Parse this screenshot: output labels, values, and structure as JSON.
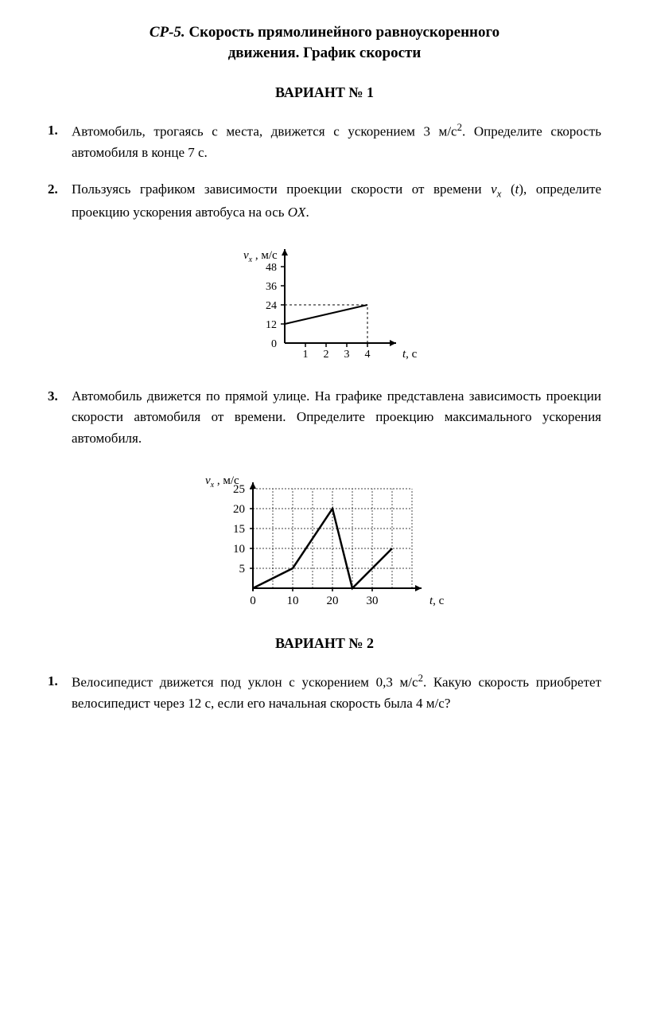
{
  "title_prefix": "СР-5.",
  "title_line1": " Скорость прямолинейного равноускоренного",
  "title_line2": "движения. График скорости",
  "variant1_header": "ВАРИАНТ № 1",
  "variant2_header": "ВАРИАНТ № 2",
  "v1_p1_num": "1.",
  "v1_p1_text_a": "Автомобиль, трогаясь с места, движется с ускорением 3 м/с",
  "v1_p1_text_b": ". Определите скорость автомобиля в конце 7 с.",
  "v1_p2_num": "2.",
  "v1_p2_text_a": "Пользуясь графиком зависимости проекции скорости от времени ",
  "v1_p2_text_b": " (",
  "v1_p2_text_c": "), определите проекцию ускорения автобуса на ось ",
  "v1_p2_text_d": ".",
  "v1_p3_num": "3.",
  "v1_p3_text": "Автомобиль движется по прямой улице. На графике представлена зависимость проекции скорости автомобиля от времени. Определите проекцию максимального ускорения автомобиля.",
  "v2_p1_num": "1.",
  "v2_p1_text_a": "Велосипедист движется под уклон с ускорением 0,3 м/с",
  "v2_p1_text_b": ". Какую скорость приобретет велосипедист через 12 с, если его начальная скорость была 4 м/с?",
  "var_vx": "v",
  "var_x": "x",
  "var_t": "t",
  "var_OX": "OX",
  "chart1": {
    "type": "line",
    "ylabel": "vₓ , м/с",
    "xlabel": "t, с",
    "y_ticks": [
      0,
      12,
      24,
      36,
      48
    ],
    "x_ticks": [
      1,
      2,
      3,
      4
    ],
    "line_points": [
      [
        0,
        12
      ],
      [
        4,
        24
      ]
    ],
    "dashed_vertical_x": 4,
    "dashed_horizontal_y": 24,
    "ylim": [
      0,
      55
    ],
    "xlim": [
      0,
      5
    ],
    "axis_color": "#000000",
    "line_color": "#000000",
    "line_width": 2,
    "background": "#ffffff"
  },
  "chart2": {
    "type": "line",
    "ylabel": "vₓ , м/с",
    "xlabel": "t, с",
    "y_ticks": [
      5,
      10,
      15,
      20,
      25
    ],
    "x_ticks": [
      0,
      10,
      20,
      30
    ],
    "line_points": [
      [
        0,
        0
      ],
      [
        10,
        5
      ],
      [
        20,
        20
      ],
      [
        25,
        0
      ],
      [
        35,
        10
      ]
    ],
    "ylim": [
      0,
      25
    ],
    "xlim": [
      0,
      40
    ],
    "grid": true,
    "grid_color": "#000000",
    "grid_dash": "2,2",
    "axis_color": "#000000",
    "line_color": "#000000",
    "line_width": 2.5,
    "background": "#ffffff"
  }
}
